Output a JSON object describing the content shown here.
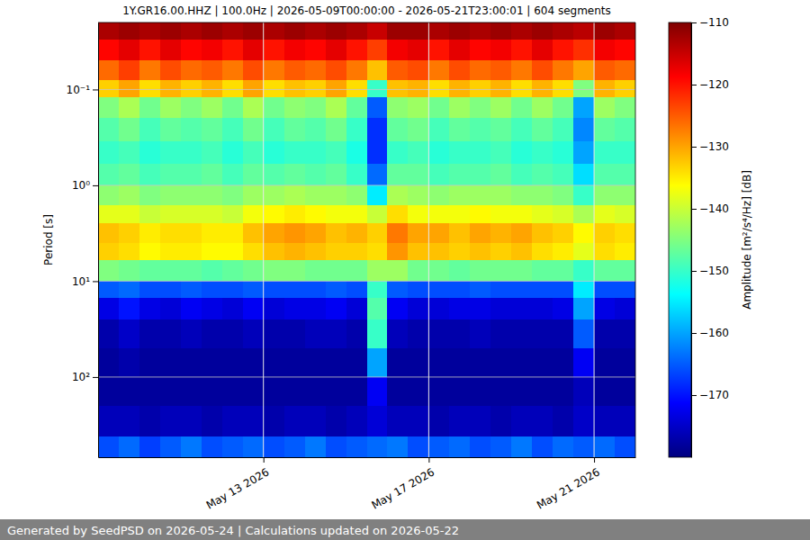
{
  "chart_data": {
    "type": "heatmap",
    "title": "1Y.GR16.00.HHZ | 100.0Hz | 2026-05-09T00:00:00 - 2026-05-21T23:00:01 | 604 segments",
    "ylabel": "Period [s]",
    "footer": "Generated by SeedPSD on 2026-05-24 | Calculations updated on 2026-05-22",
    "log": "y",
    "grid": true,
    "xlim": [
      "2026-05-09T00:00",
      "2026-05-22T00:00"
    ],
    "ylim": [
      0.02,
      686
    ],
    "xticks": [
      {
        "value": "2026-05-13T00:00",
        "label": "May 13 2026"
      },
      {
        "value": "2026-05-17T00:00",
        "label": "May 17 2026"
      },
      {
        "value": "2026-05-21T00:00",
        "label": "May 21 2026"
      }
    ],
    "yticks": [
      {
        "value": 0.1,
        "label": "10⁻¹"
      },
      {
        "value": 1,
        "label": "10⁰"
      },
      {
        "value": 10,
        "label": "10¹"
      },
      {
        "value": 100,
        "label": "10²"
      }
    ],
    "x_edges": [
      "2026-05-09T00:00",
      "2026-05-09T12:00",
      "2026-05-10T00:00",
      "2026-05-10T12:00",
      "2026-05-11T00:00",
      "2026-05-11T12:00",
      "2026-05-12T00:00",
      "2026-05-12T12:00",
      "2026-05-13T00:00",
      "2026-05-13T12:00",
      "2026-05-14T00:00",
      "2026-05-14T12:00",
      "2026-05-15T00:00",
      "2026-05-15T12:00",
      "2026-05-16T00:00",
      "2026-05-16T12:00",
      "2026-05-17T00:00",
      "2026-05-17T12:00",
      "2026-05-18T00:00",
      "2026-05-18T12:00",
      "2026-05-19T00:00",
      "2026-05-19T12:00",
      "2026-05-20T00:00",
      "2026-05-20T12:00",
      "2026-05-21T00:00",
      "2026-05-21T12:00",
      "2026-05-22T00:00"
    ],
    "y_edges": [
      0.02,
      0.03,
      0.05,
      0.08,
      0.12,
      0.2,
      0.35,
      0.6,
      1,
      1.6,
      2.5,
      4,
      6,
      10,
      15,
      25,
      50,
      100,
      200,
      420,
      686
    ],
    "z": [
      [
        -113,
        -112,
        -113,
        -112,
        -113,
        -112,
        -113,
        -112,
        -113,
        -112,
        -113,
        -112,
        -113,
        -115,
        -112,
        -112,
        -113,
        -112,
        -113,
        -112,
        -113,
        -112,
        -113,
        -114,
        -112,
        -113
      ],
      [
        -119,
        -117,
        -120,
        -117,
        -119,
        -118,
        -120,
        -117,
        -120,
        -118,
        -119,
        -117,
        -120,
        -123,
        -118,
        -117,
        -120,
        -117,
        -119,
        -118,
        -120,
        -117,
        -120,
        -122,
        -118,
        -119
      ],
      [
        -126,
        -123,
        -127,
        -124,
        -126,
        -125,
        -127,
        -124,
        -127,
        -125,
        -126,
        -124,
        -127,
        -132,
        -125,
        -124,
        -127,
        -124,
        -126,
        -125,
        -127,
        -124,
        -127,
        -130,
        -125,
        -126
      ],
      [
        -133,
        -130,
        -134,
        -131,
        -133,
        -131,
        -134,
        -130,
        -134,
        -132,
        -133,
        -130,
        -134,
        -150,
        -132,
        -131,
        -134,
        -131,
        -133,
        -131,
        -134,
        -131,
        -134,
        -145,
        -131,
        -133
      ],
      [
        -145,
        -142,
        -146,
        -143,
        -145,
        -143,
        -146,
        -142,
        -146,
        -144,
        -145,
        -142,
        -147,
        -165,
        -144,
        -143,
        -146,
        -143,
        -145,
        -143,
        -146,
        -143,
        -146,
        -160,
        -143,
        -145
      ],
      [
        -148,
        -146,
        -149,
        -147,
        -148,
        -147,
        -149,
        -146,
        -149,
        -147,
        -148,
        -146,
        -150,
        -168,
        -147,
        -146,
        -149,
        -147,
        -148,
        -147,
        -149,
        -147,
        -149,
        -162,
        -147,
        -148
      ],
      [
        -150,
        -149,
        -151,
        -150,
        -150,
        -149,
        -151,
        -149,
        -151,
        -150,
        -150,
        -149,
        -152,
        -168,
        -150,
        -149,
        -151,
        -150,
        -150,
        -149,
        -151,
        -150,
        -151,
        -160,
        -150,
        -150
      ],
      [
        -148,
        -147,
        -149,
        -148,
        -148,
        -147,
        -149,
        -147,
        -148,
        -147,
        -148,
        -147,
        -150,
        -164,
        -147,
        -147,
        -149,
        -148,
        -148,
        -147,
        -149,
        -148,
        -149,
        -156,
        -148,
        -148
      ],
      [
        -144,
        -143,
        -145,
        -144,
        -144,
        -144,
        -145,
        -143,
        -143,
        -142,
        -143,
        -143,
        -144,
        -155,
        -142,
        -143,
        -144,
        -143,
        -143,
        -143,
        -144,
        -144,
        -145,
        -150,
        -144,
        -144
      ],
      [
        -138,
        -138,
        -140,
        -139,
        -139,
        -139,
        -140,
        -137,
        -136,
        -135,
        -136,
        -137,
        -137,
        -140,
        -134,
        -137,
        -137,
        -137,
        -136,
        -137,
        -137,
        -138,
        -139,
        -142,
        -138,
        -139
      ],
      [
        -132,
        -133,
        -135,
        -134,
        -134,
        -135,
        -135,
        -132,
        -130,
        -129,
        -130,
        -132,
        -131,
        -133,
        -127,
        -130,
        -130,
        -132,
        -130,
        -131,
        -130,
        -132,
        -133,
        -136,
        -133,
        -134
      ],
      [
        -133,
        -134,
        -136,
        -135,
        -135,
        -136,
        -136,
        -134,
        -132,
        -131,
        -132,
        -133,
        -133,
        -134,
        -129,
        -132,
        -132,
        -133,
        -132,
        -133,
        -132,
        -134,
        -135,
        -138,
        -134,
        -135
      ],
      [
        -145,
        -146,
        -147,
        -147,
        -147,
        -148,
        -147,
        -146,
        -145,
        -145,
        -146,
        -146,
        -146,
        -143,
        -143,
        -146,
        -146,
        -147,
        -146,
        -146,
        -146,
        -147,
        -147,
        -150,
        -147,
        -147
      ],
      [
        -165,
        -164,
        -166,
        -166,
        -165,
        -166,
        -166,
        -165,
        -166,
        -166,
        -166,
        -165,
        -166,
        -150,
        -165,
        -166,
        -166,
        -166,
        -165,
        -166,
        -166,
        -166,
        -166,
        -155,
        -166,
        -166
      ],
      [
        -173,
        -170,
        -173,
        -174,
        -172,
        -173,
        -174,
        -172,
        -174,
        -173,
        -173,
        -172,
        -174,
        -148,
        -172,
        -174,
        -174,
        -173,
        -173,
        -174,
        -174,
        -174,
        -173,
        -160,
        -173,
        -174
      ],
      [
        -177,
        -175,
        -177,
        -177,
        -176,
        -177,
        -177,
        -176,
        -177,
        -177,
        -176,
        -176,
        -177,
        -150,
        -176,
        -177,
        -177,
        -177,
        -176,
        -177,
        -177,
        -177,
        -177,
        -165,
        -177,
        -177
      ],
      [
        -178,
        -177,
        -178,
        -178,
        -178,
        -178,
        -178,
        -178,
        -178,
        -178,
        -178,
        -178,
        -178,
        -160,
        -178,
        -178,
        -178,
        -178,
        -178,
        -178,
        -178,
        -178,
        -178,
        -172,
        -178,
        -178
      ],
      [
        -178,
        -178,
        -178,
        -178,
        -178,
        -178,
        -178,
        -178,
        -178,
        -178,
        -178,
        -178,
        -178,
        -172,
        -178,
        -178,
        -178,
        -178,
        -178,
        -178,
        -178,
        -178,
        -178,
        -176,
        -178,
        -178
      ],
      [
        -176,
        -176,
        -177,
        -176,
        -176,
        -177,
        -176,
        -176,
        -177,
        -176,
        -176,
        -177,
        -176,
        -174,
        -176,
        -176,
        -177,
        -176,
        -176,
        -177,
        -176,
        -176,
        -177,
        -175,
        -176,
        -176
      ],
      [
        -166,
        -164,
        -167,
        -165,
        -163,
        -166,
        -165,
        -164,
        -166,
        -165,
        -163,
        -166,
        -165,
        -164,
        -163,
        -166,
        -165,
        -164,
        -166,
        -165,
        -163,
        -166,
        -164,
        -165,
        -164,
        -166
      ]
    ],
    "colorbar": {
      "label": "Amplitude [m²/s⁴/Hz] [dB]",
      "range": [
        -180,
        -110
      ],
      "ticks": [
        {
          "value": -110,
          "label": "−110"
        },
        {
          "value": -120,
          "label": "−120"
        },
        {
          "value": -130,
          "label": "−130"
        },
        {
          "value": -140,
          "label": "−140"
        },
        {
          "value": -150,
          "label": "−150"
        },
        {
          "value": -160,
          "label": "−160"
        },
        {
          "value": -170,
          "label": "−170"
        }
      ]
    }
  }
}
